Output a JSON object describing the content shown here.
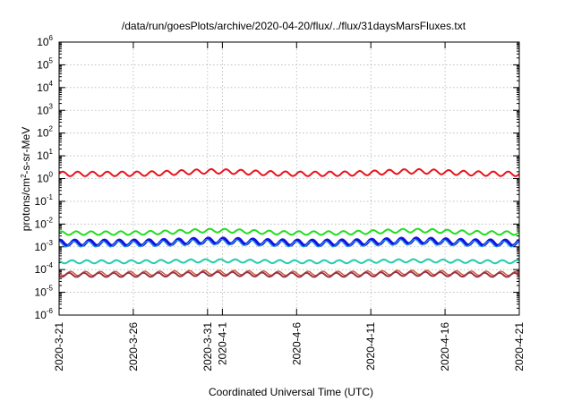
{
  "chart_data": {
    "type": "line",
    "title": "/data/run/goesPlots/archive/2020-04-20/flux/../flux/31daysMarsFluxes.txt",
    "xlabel": "Coordinated Universal Time (UTC)",
    "ylabel": "protons/cm²-s-sr-MeV",
    "yscale": "log",
    "ylim": [
      1e-06,
      1000000.0
    ],
    "y_ticks": [
      {
        "exp": "-6"
      },
      {
        "exp": "-5"
      },
      {
        "exp": "-4"
      },
      {
        "exp": "-3"
      },
      {
        "exp": "-2"
      },
      {
        "exp": "-1"
      },
      {
        "exp": "0"
      },
      {
        "exp": "1"
      },
      {
        "exp": "2"
      },
      {
        "exp": "3"
      },
      {
        "exp": "4"
      },
      {
        "exp": "5"
      },
      {
        "exp": "6"
      }
    ],
    "x_range": [
      "2020-03-21",
      "2020-04-21"
    ],
    "x_ticks": [
      "2020-3-21",
      "2020-3-26",
      "2020-3-31",
      "2020-4-1",
      "2020-4-6",
      "2020-4-11",
      "2020-4-16",
      "2020-4-21"
    ],
    "grid": true,
    "series": [
      {
        "color": "#e8141c",
        "lw": 2.0,
        "base": 1.6,
        "amp": 0.1,
        "bump": 0.25,
        "values_note": ""
      },
      {
        "color": "#22dd22",
        "lw": 2.0,
        "base": 0.004,
        "amp": 0.08,
        "bump": 0.25
      },
      {
        "color": "#1313e0",
        "lw": 3.2,
        "base": 0.0015,
        "amp": 0.12,
        "bump": 0.2
      },
      {
        "color": "#2299ee",
        "lw": 1.2,
        "base": 0.0013,
        "amp": 0.12,
        "bump": 0.2
      },
      {
        "color": "#22ccaa",
        "lw": 2.0,
        "base": 0.00022,
        "amp": 0.07,
        "bump": 0.1
      },
      {
        "color": "#cc5533",
        "lw": 1.4,
        "base": 6.8e-05,
        "amp": 0.09,
        "bump": 0.1
      },
      {
        "color": "#993344",
        "lw": 2.0,
        "base": 5.8e-05,
        "amp": 0.09,
        "bump": 0.1
      }
    ]
  }
}
